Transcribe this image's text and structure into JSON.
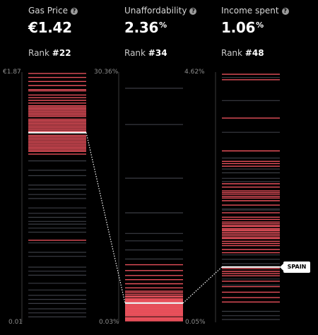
{
  "columns": [
    {
      "label": "Gas Price",
      "value": "€1.42",
      "value_suffix": "",
      "rank_label": "Rank ",
      "rank": "#22",
      "axis_max": "€1.87",
      "axis_min": "0.01"
    },
    {
      "label": "Unaffordability",
      "value": "2.36",
      "value_suffix": "%",
      "rank_label": "Rank ",
      "rank": "#34",
      "axis_max": "30.36%",
      "axis_min": "0.03%"
    },
    {
      "label": "Income spent",
      "value": "1.06",
      "value_suffix": "%",
      "rank_label": "Rank ",
      "rank": "#48",
      "axis_max": "4.62%",
      "axis_min": "0.05%"
    }
  ],
  "highlight_label": "SPAIN",
  "colors": {
    "red": "#e8505b",
    "gray": "#3b3d44",
    "highlight": "#ffffff",
    "axis": "#3a3a3a"
  },
  "chart_data": {
    "type": "strip",
    "highlight": "SPAIN",
    "series": [
      {
        "name": "Gas Price",
        "unit": "€",
        "range": [
          0.01,
          1.87
        ],
        "highlight_value": 1.42,
        "red_values": [
          1.86,
          1.83,
          1.8,
          1.77,
          1.74,
          1.73,
          1.7,
          1.68,
          1.66,
          1.64,
          1.62,
          1.61,
          1.6,
          1.59,
          1.58,
          1.57,
          1.56,
          1.55,
          1.54,
          1.52,
          1.51,
          1.5,
          1.49,
          1.48,
          1.47,
          1.46,
          1.45,
          1.44,
          1.43,
          1.4,
          1.39,
          1.38,
          1.37,
          1.36,
          1.35,
          1.34,
          1.33,
          1.32,
          1.31,
          1.3,
          1.29,
          1.28,
          1.26,
          0.62
        ],
        "gray_values": [
          1.21,
          1.14,
          1.1,
          1.03,
          1.0,
          0.96,
          0.93,
          0.86,
          0.82,
          0.79,
          0.76,
          0.74,
          0.71,
          0.68,
          0.6,
          0.53,
          0.5,
          0.42,
          0.39,
          0.36,
          0.3,
          0.25,
          0.21,
          0.18,
          0.15,
          0.11,
          0.08,
          0.05
        ]
      },
      {
        "name": "Unaffordability",
        "unit": "%",
        "range": [
          0.03,
          30.36
        ],
        "highlight_value": 2.36,
        "red_values": [
          7.0,
          6.3,
          5.7,
          5.2,
          4.7,
          4.2,
          3.8,
          3.6,
          3.4,
          3.2,
          3.1,
          2.9,
          2.8,
          2.7,
          2.6,
          2.5,
          2.2,
          2.1,
          2.0,
          1.9,
          1.8,
          1.7,
          1.6,
          1.5,
          1.4,
          1.3,
          1.2,
          1.1,
          1.0,
          0.9,
          0.8,
          0.6,
          0.5,
          0.4,
          0.3,
          0.2
        ],
        "gray_values": [
          28.4,
          24.0,
          17.5,
          13.3,
          10.8,
          9.9,
          8.8,
          7.7
        ]
      },
      {
        "name": "Income spent",
        "unit": "%",
        "range": [
          0.05,
          4.62
        ],
        "highlight_value": 1.06,
        "red_values": [
          4.58,
          4.48,
          3.78,
          3.18,
          2.99,
          2.95,
          2.9,
          2.58,
          2.52,
          2.45,
          2.42,
          2.39,
          2.35,
          2.32,
          2.27,
          2.19,
          2.05,
          1.97,
          1.93,
          1.88,
          1.85,
          1.82,
          1.8,
          1.76,
          1.74,
          1.72,
          1.69,
          1.66,
          1.63,
          1.6,
          1.58,
          1.53,
          1.49,
          1.45,
          1.38,
          1.32,
          1.03,
          0.98,
          0.94,
          0.9,
          0.8,
          0.7,
          0.6,
          0.5,
          0.42
        ],
        "gray_values": [
          4.52,
          4.1,
          3.52,
          3.05,
          2.78,
          2.85,
          2.68,
          2.62,
          2.12,
          2.1,
          1.28,
          1.2,
          1.12,
          0.84,
          0.73,
          0.25,
          0.17,
          0.1
        ]
      }
    ]
  }
}
